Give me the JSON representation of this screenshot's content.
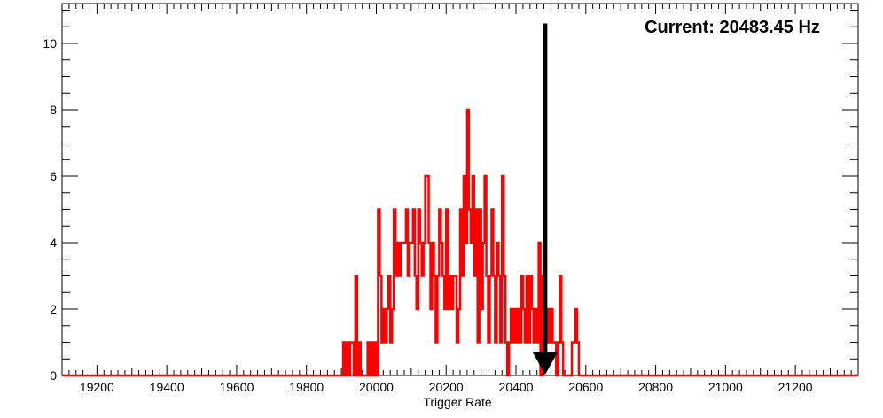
{
  "chart_data": {
    "type": "histogram",
    "title": "",
    "xlabel": "Trigger Rate",
    "ylabel": "",
    "xlim": [
      19100,
      21380
    ],
    "ylim": [
      0,
      11.2
    ],
    "x_ticks": [
      19200,
      19400,
      19600,
      19800,
      20000,
      20200,
      20400,
      20600,
      20800,
      21000,
      21200
    ],
    "x_tick_labels": [
      "19200",
      "19400",
      "19600",
      "19800",
      "20000",
      "20200",
      "20400",
      "20600",
      "20800",
      "21000",
      "21200"
    ],
    "y_ticks": [
      0,
      2,
      4,
      6,
      8,
      10
    ],
    "y_tick_labels": [
      "0",
      "2",
      "4",
      "6",
      "8",
      "10"
    ],
    "grid": false,
    "line_color": "#ff0000",
    "series": [
      {
        "name": "",
        "bins": [
          {
            "x": 19905,
            "y": 1
          },
          {
            "x": 19910,
            "y": 0
          },
          {
            "x": 19915,
            "y": 1
          },
          {
            "x": 19920,
            "y": 0
          },
          {
            "x": 19925,
            "y": 1
          },
          {
            "x": 19930,
            "y": 1
          },
          {
            "x": 19935,
            "y": 0
          },
          {
            "x": 19940,
            "y": 3
          },
          {
            "x": 19945,
            "y": 0
          },
          {
            "x": 19950,
            "y": 1
          },
          {
            "x": 19955,
            "y": 0
          },
          {
            "x": 19960,
            "y": 0
          },
          {
            "x": 19965,
            "y": 0
          },
          {
            "x": 19970,
            "y": 0
          },
          {
            "x": 19975,
            "y": 1
          },
          {
            "x": 19980,
            "y": 0
          },
          {
            "x": 19985,
            "y": 1
          },
          {
            "x": 19990,
            "y": 0
          },
          {
            "x": 19995,
            "y": 1
          },
          {
            "x": 20000,
            "y": 0
          },
          {
            "x": 20005,
            "y": 5
          },
          {
            "x": 20010,
            "y": 3
          },
          {
            "x": 20015,
            "y": 1
          },
          {
            "x": 20020,
            "y": 2
          },
          {
            "x": 20025,
            "y": 1
          },
          {
            "x": 20030,
            "y": 2
          },
          {
            "x": 20035,
            "y": 3
          },
          {
            "x": 20040,
            "y": 1
          },
          {
            "x": 20045,
            "y": 2
          },
          {
            "x": 20050,
            "y": 5
          },
          {
            "x": 20055,
            "y": 3
          },
          {
            "x": 20060,
            "y": 4
          },
          {
            "x": 20065,
            "y": 3
          },
          {
            "x": 20070,
            "y": 4
          },
          {
            "x": 20075,
            "y": 4
          },
          {
            "x": 20080,
            "y": 4
          },
          {
            "x": 20085,
            "y": 5
          },
          {
            "x": 20090,
            "y": 3
          },
          {
            "x": 20095,
            "y": 4
          },
          {
            "x": 20100,
            "y": 4
          },
          {
            "x": 20105,
            "y": 5
          },
          {
            "x": 20110,
            "y": 3
          },
          {
            "x": 20115,
            "y": 2
          },
          {
            "x": 20120,
            "y": 5
          },
          {
            "x": 20125,
            "y": 4
          },
          {
            "x": 20130,
            "y": 3
          },
          {
            "x": 20135,
            "y": 4
          },
          {
            "x": 20140,
            "y": 6
          },
          {
            "x": 20145,
            "y": 6
          },
          {
            "x": 20150,
            "y": 4
          },
          {
            "x": 20155,
            "y": 2
          },
          {
            "x": 20160,
            "y": 4
          },
          {
            "x": 20165,
            "y": 3
          },
          {
            "x": 20170,
            "y": 1
          },
          {
            "x": 20175,
            "y": 3
          },
          {
            "x": 20180,
            "y": 5
          },
          {
            "x": 20185,
            "y": 4
          },
          {
            "x": 20190,
            "y": 3
          },
          {
            "x": 20195,
            "y": 2
          },
          {
            "x": 20200,
            "y": 5
          },
          {
            "x": 20205,
            "y": 2
          },
          {
            "x": 20210,
            "y": 3
          },
          {
            "x": 20215,
            "y": 2
          },
          {
            "x": 20220,
            "y": 3
          },
          {
            "x": 20225,
            "y": 3
          },
          {
            "x": 20230,
            "y": 1
          },
          {
            "x": 20235,
            "y": 2
          },
          {
            "x": 20240,
            "y": 5
          },
          {
            "x": 20245,
            "y": 3
          },
          {
            "x": 20250,
            "y": 6
          },
          {
            "x": 20255,
            "y": 4
          },
          {
            "x": 20260,
            "y": 8
          },
          {
            "x": 20265,
            "y": 5
          },
          {
            "x": 20270,
            "y": 4
          },
          {
            "x": 20275,
            "y": 6
          },
          {
            "x": 20280,
            "y": 3
          },
          {
            "x": 20285,
            "y": 5
          },
          {
            "x": 20290,
            "y": 1
          },
          {
            "x": 20295,
            "y": 5
          },
          {
            "x": 20300,
            "y": 2
          },
          {
            "x": 20305,
            "y": 4
          },
          {
            "x": 20310,
            "y": 6
          },
          {
            "x": 20315,
            "y": 3
          },
          {
            "x": 20320,
            "y": 1
          },
          {
            "x": 20325,
            "y": 3
          },
          {
            "x": 20330,
            "y": 5
          },
          {
            "x": 20335,
            "y": 3
          },
          {
            "x": 20340,
            "y": 1
          },
          {
            "x": 20345,
            "y": 4
          },
          {
            "x": 20350,
            "y": 3
          },
          {
            "x": 20355,
            "y": 1
          },
          {
            "x": 20360,
            "y": 6
          },
          {
            "x": 20365,
            "y": 3
          },
          {
            "x": 20370,
            "y": 1
          },
          {
            "x": 20375,
            "y": 0
          },
          {
            "x": 20380,
            "y": 1
          },
          {
            "x": 20385,
            "y": 2
          },
          {
            "x": 20390,
            "y": 1
          },
          {
            "x": 20395,
            "y": 2
          },
          {
            "x": 20400,
            "y": 1
          },
          {
            "x": 20405,
            "y": 2
          },
          {
            "x": 20410,
            "y": 1
          },
          {
            "x": 20415,
            "y": 3
          },
          {
            "x": 20420,
            "y": 2
          },
          {
            "x": 20425,
            "y": 1
          },
          {
            "x": 20430,
            "y": 3
          },
          {
            "x": 20435,
            "y": 1
          },
          {
            "x": 20440,
            "y": 3
          },
          {
            "x": 20445,
            "y": 2
          },
          {
            "x": 20450,
            "y": 1
          },
          {
            "x": 20455,
            "y": 2
          },
          {
            "x": 20460,
            "y": 1
          },
          {
            "x": 20465,
            "y": 4
          },
          {
            "x": 20470,
            "y": 0
          },
          {
            "x": 20475,
            "y": 3
          },
          {
            "x": 20480,
            "y": 2
          },
          {
            "x": 20485,
            "y": 1
          },
          {
            "x": 20490,
            "y": 2
          },
          {
            "x": 20495,
            "y": 1
          },
          {
            "x": 20500,
            "y": 2
          },
          {
            "x": 20505,
            "y": 1
          },
          {
            "x": 20510,
            "y": 1
          },
          {
            "x": 20515,
            "y": 0
          },
          {
            "x": 20520,
            "y": 1
          },
          {
            "x": 20525,
            "y": 3
          },
          {
            "x": 20530,
            "y": 1
          },
          {
            "x": 20535,
            "y": 0
          },
          {
            "x": 20540,
            "y": 0
          },
          {
            "x": 20545,
            "y": 0
          },
          {
            "x": 20550,
            "y": 0
          },
          {
            "x": 20555,
            "y": 0
          },
          {
            "x": 20560,
            "y": 1
          },
          {
            "x": 20565,
            "y": 1
          },
          {
            "x": 20570,
            "y": 2
          },
          {
            "x": 20575,
            "y": 1
          },
          {
            "x": 20580,
            "y": 0
          },
          {
            "x": 20585,
            "y": 0
          },
          {
            "x": 20590,
            "y": 0
          },
          {
            "x": 20595,
            "y": 0
          },
          {
            "x": 20600,
            "y": 0
          },
          {
            "x": 20605,
            "y": 0
          },
          {
            "x": 20610,
            "y": 0
          },
          {
            "x": 20615,
            "y": 0
          },
          {
            "x": 20620,
            "y": 0
          }
        ]
      }
    ],
    "annotations": {
      "current_label": "Current: 20483.45 Hz",
      "current_value": 20483.45,
      "arrow_top_y": 10.6,
      "arrow_color": "#000000"
    }
  }
}
